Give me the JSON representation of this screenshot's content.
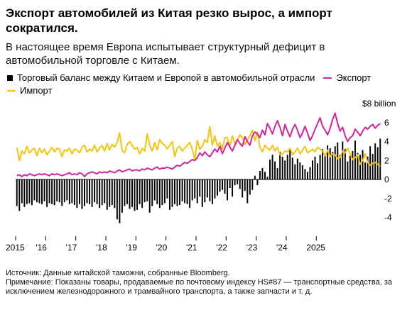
{
  "title": "Экспорт автомобилей из Китая резко вырос, а импорт сократился.",
  "subtitle": "В настоящее время Европа испытывает структурный дефицит в автомобильной торговле с Китаем.",
  "legend": {
    "balance": "Торговый баланс между Китаем и Европой в автомобильной отрасли",
    "export": "Экспорт",
    "import": "Импорт"
  },
  "colors": {
    "balance": "#000000",
    "export": "#d6249f",
    "import": "#f5c40f"
  },
  "footer": {
    "source": "Источник: Данные китайской таможни, собранные Bloomberg.",
    "note": "Примечание: Показаны товары, продаваемые по почтовому индексу HS#87 — транспортные средства, за исключением железнодорожного и трамвайного транспорта, а также запчасти и т. д."
  },
  "chart_data": {
    "type": "bar+line",
    "unit_label": "$8 billion",
    "y_ticks": [
      "6",
      "4",
      "2",
      "0",
      "-2",
      "-4"
    ],
    "y_tick_values": [
      6,
      4,
      2,
      0,
      -2,
      -4
    ],
    "ylim": [
      -5,
      8
    ],
    "x_ticks": [
      "2015",
      "'16",
      "'17",
      "'18",
      "'19",
      "'20",
      "'21",
      "'22",
      "'23",
      "'24",
      "2025"
    ],
    "x_range": [
      "2015-01",
      "2025-10"
    ],
    "series": [
      {
        "name": "Торговый баланс между Китаем и Европой в автомобильной отрасли",
        "kind": "bar",
        "values": [
          -2.8,
          -3.3,
          -2.5,
          -2.9,
          -2.6,
          -2.5,
          -2.7,
          -2.2,
          -2.4,
          -2.5,
          -2.6,
          -2.3,
          -2.9,
          -2.5,
          -2.6,
          -2.7,
          -2.3,
          -2.4,
          -2.8,
          -2.4,
          -2.2,
          -2.6,
          -2.5,
          -2.7,
          -3.0,
          -2.6,
          -3.1,
          -2.8,
          -2.5,
          -2.6,
          -2.9,
          -2.4,
          -2.6,
          -3.0,
          -2.7,
          -2.5,
          -3.2,
          -2.9,
          -2.7,
          -3.0,
          -4.2,
          -4.6,
          -3.5,
          -2.8,
          -2.6,
          -3.1,
          -2.9,
          -3.3,
          -3.2,
          -2.6,
          -3.0,
          -2.4,
          -2.3,
          -3.5,
          -2.8,
          -2.2,
          -2.6,
          -3.0,
          -2.7,
          -2.5,
          -2.0,
          -3.2,
          -2.9,
          -2.6,
          -2.8,
          -2.7,
          -2.3,
          -2.5,
          -2.6,
          -3.0,
          -2.2,
          -2.0,
          -2.5,
          -1.8,
          -2.9,
          -2.4,
          -1.9,
          -2.3,
          -2.6,
          -2.0,
          -1.7,
          -1.3,
          -1.1,
          -1.5,
          -2.2,
          -0.9,
          -1.8,
          -0.6,
          -0.5,
          -1.0,
          -1.9,
          -1.2,
          -2.5,
          -1.6,
          -1.1,
          0.4,
          -0.6,
          0.9,
          1.2,
          0.8,
          0.3,
          2.1,
          2.6,
          1.9,
          1.2,
          2.9,
          2.4,
          2.0,
          2.6,
          3.1,
          2.3,
          1.6,
          2.2,
          1.8,
          1.5,
          1.1,
          0.8,
          1.3,
          2.0,
          2.4,
          1.7,
          2.6,
          3.2,
          2.7,
          3.6,
          3.3,
          2.9,
          3.5,
          3.9,
          2.6,
          4.0,
          3.2,
          1.9,
          2.5,
          3.0,
          4.1,
          2.8,
          2.6,
          3.1,
          1.8,
          2.4,
          3.5,
          2.7,
          3.8,
          3.4,
          4.3
        ]
      },
      {
        "name": "Экспорт",
        "kind": "line",
        "values": [
          0.4,
          0.5,
          0.3,
          0.5,
          0.4,
          0.6,
          0.5,
          0.4,
          0.5,
          0.6,
          0.5,
          0.6,
          0.5,
          0.4,
          0.6,
          0.5,
          0.6,
          0.5,
          0.4,
          0.5,
          0.6,
          0.7,
          0.5,
          0.6,
          0.5,
          0.7,
          0.6,
          0.3,
          0.6,
          0.7,
          0.8,
          0.7,
          0.6,
          0.8,
          0.7,
          0.8,
          0.7,
          0.9,
          0.8,
          0.7,
          0.9,
          1.0,
          0.8,
          0.9,
          1.0,
          1.1,
          0.9,
          1.0,
          1.0,
          0.9,
          1.1,
          1.0,
          1.2,
          1.1,
          1.0,
          1.2,
          1.3,
          1.1,
          1.2,
          1.2,
          1.3,
          1.2,
          1.1,
          1.3,
          1.5,
          1.4,
          1.6,
          1.8,
          1.7,
          1.9,
          2.1,
          2.0,
          2.3,
          2.8,
          2.5,
          2.9,
          2.6,
          2.4,
          2.8,
          3.2,
          2.9,
          3.5,
          2.7,
          3.3,
          3.9,
          3.4,
          3.0,
          3.6,
          4.2,
          3.8,
          3.5,
          4.5,
          4.0,
          3.6,
          4.6,
          5.0,
          4.8,
          4.4,
          5.2,
          4.7,
          5.9,
          5.4,
          4.8,
          5.6,
          6.2,
          5.5,
          4.6,
          5.8,
          5.1,
          4.5,
          5.3,
          5.8,
          5.2,
          4.4,
          4.9,
          5.6,
          4.9,
          4.1,
          4.6,
          5.3,
          5.9,
          6.5,
          5.6,
          5.2,
          4.7,
          5.4,
          6.3,
          7.0,
          5.9,
          5.1,
          5.5,
          4.6,
          4.0,
          4.4,
          4.6,
          5.3,
          5.0,
          4.6,
          5.1,
          5.5,
          5.3,
          5.6,
          5.8,
          5.4,
          5.7,
          5.9
        ]
      },
      {
        "name": "Импорт",
        "kind": "line",
        "values": [
          3.4,
          2.0,
          3.0,
          2.7,
          3.5,
          2.8,
          3.1,
          3.3,
          2.5,
          3.3,
          2.8,
          3.2,
          2.6,
          3.0,
          3.4,
          2.9,
          3.3,
          3.2,
          2.4,
          3.1,
          3.0,
          3.3,
          2.7,
          3.2,
          3.1,
          2.8,
          3.4,
          3.6,
          2.9,
          3.2,
          3.0,
          3.6,
          2.9,
          3.3,
          3.6,
          3.0,
          3.8,
          3.1,
          3.7,
          3.4,
          3.9,
          4.9,
          3.1,
          2.8,
          3.7,
          4.0,
          3.6,
          3.2,
          3.4,
          2.7,
          3.3,
          3.0,
          4.8,
          3.6,
          3.0,
          3.9,
          3.1,
          4.2,
          3.8,
          3.6,
          3.2,
          3.6,
          4.0,
          2.4,
          3.3,
          3.5,
          3.0,
          3.3,
          3.6,
          3.9,
          3.2,
          2.1,
          4.1,
          3.2,
          3.5,
          4.2,
          3.9,
          5.6,
          3.6,
          4.6,
          3.5,
          3.9,
          3.2,
          4.4,
          4.4,
          3.5,
          4.6,
          3.8,
          4.2,
          4.7,
          4.4,
          3.7,
          4.2,
          4.6,
          5.2,
          4.1,
          5.0,
          3.4,
          2.9,
          3.6,
          3.3,
          3.1,
          3.6,
          3.0,
          3.4,
          2.6,
          2.7,
          3.0,
          2.9,
          3.3,
          2.6,
          2.9,
          3.3,
          2.7,
          3.1,
          3.5,
          2.8,
          3.0,
          3.2,
          2.9,
          3.4,
          3.2,
          3.0,
          2.5,
          3.1,
          2.4,
          2.7,
          2.6,
          2.2,
          2.3,
          3.0,
          2.8,
          3.3,
          2.7,
          2.1,
          2.3,
          2.6,
          1.6,
          2.0,
          2.7,
          1.8,
          1.5,
          1.7,
          1.8,
          1.6,
          1.4
        ]
      }
    ]
  }
}
